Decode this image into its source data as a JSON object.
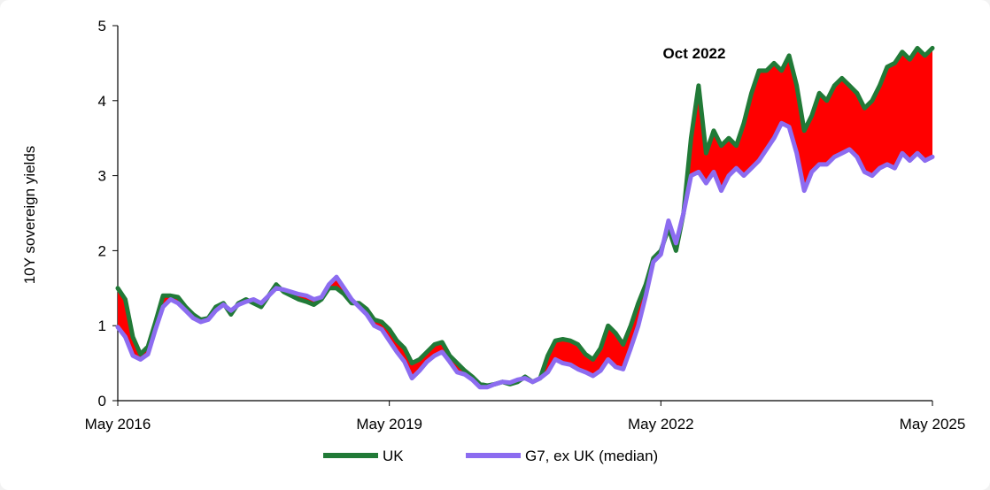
{
  "chart_data": {
    "type": "line",
    "title": "",
    "xlabel": "",
    "ylabel": "10Y sovereign yields",
    "ylim": [
      0,
      5
    ],
    "yticks": [
      "0",
      "1",
      "2",
      "3",
      "4",
      "5"
    ],
    "xticks": [
      "May 2016",
      "May 2019",
      "May 2022",
      "May 2025"
    ],
    "xlim": [
      "2016-05",
      "2025-05"
    ],
    "grid": false,
    "legend_position": "bottom",
    "annotation": "Oct 2022",
    "fill_between": "UK above G7, ex UK (median) shaded",
    "colors": {
      "UK": "#217a37",
      "G7": "#8c6cf0",
      "gap": "#ff0000"
    },
    "x": [
      "2016-05",
      "2016-06",
      "2016-07",
      "2016-08",
      "2016-09",
      "2016-10",
      "2016-11",
      "2016-12",
      "2017-01",
      "2017-02",
      "2017-03",
      "2017-04",
      "2017-05",
      "2017-06",
      "2017-07",
      "2017-08",
      "2017-09",
      "2017-10",
      "2017-11",
      "2017-12",
      "2018-01",
      "2018-02",
      "2018-03",
      "2018-04",
      "2018-05",
      "2018-06",
      "2018-07",
      "2018-08",
      "2018-09",
      "2018-10",
      "2018-11",
      "2018-12",
      "2019-01",
      "2019-02",
      "2019-03",
      "2019-04",
      "2019-05",
      "2019-06",
      "2019-07",
      "2019-08",
      "2019-09",
      "2019-10",
      "2019-11",
      "2019-12",
      "2020-01",
      "2020-02",
      "2020-03",
      "2020-04",
      "2020-05",
      "2020-06",
      "2020-07",
      "2020-08",
      "2020-09",
      "2020-10",
      "2020-11",
      "2020-12",
      "2021-01",
      "2021-02",
      "2021-03",
      "2021-04",
      "2021-05",
      "2021-06",
      "2021-07",
      "2021-08",
      "2021-09",
      "2021-10",
      "2021-11",
      "2021-12",
      "2022-01",
      "2022-02",
      "2022-03",
      "2022-04",
      "2022-05",
      "2022-06",
      "2022-07",
      "2022-08",
      "2022-09",
      "2022-10",
      "2022-11",
      "2022-12",
      "2023-01",
      "2023-02",
      "2023-03",
      "2023-04",
      "2023-05",
      "2023-06",
      "2023-07",
      "2023-08",
      "2023-09",
      "2023-10",
      "2023-11",
      "2023-12",
      "2024-01",
      "2024-02",
      "2024-03",
      "2024-04",
      "2024-05",
      "2024-06",
      "2024-07",
      "2024-08",
      "2024-09",
      "2024-10",
      "2024-11",
      "2024-12",
      "2025-01",
      "2025-02",
      "2025-03",
      "2025-04",
      "2025-05"
    ],
    "series": [
      {
        "name": "UK",
        "values": [
          1.5,
          1.35,
          0.85,
          0.62,
          0.72,
          1.05,
          1.4,
          1.4,
          1.38,
          1.25,
          1.15,
          1.08,
          1.1,
          1.25,
          1.3,
          1.15,
          1.3,
          1.35,
          1.3,
          1.25,
          1.4,
          1.55,
          1.45,
          1.4,
          1.35,
          1.32,
          1.28,
          1.35,
          1.5,
          1.5,
          1.42,
          1.3,
          1.3,
          1.22,
          1.08,
          1.05,
          0.95,
          0.8,
          0.7,
          0.5,
          0.55,
          0.65,
          0.75,
          0.78,
          0.6,
          0.5,
          0.4,
          0.32,
          0.22,
          0.2,
          0.22,
          0.25,
          0.22,
          0.25,
          0.32,
          0.25,
          0.3,
          0.6,
          0.8,
          0.82,
          0.8,
          0.75,
          0.62,
          0.55,
          0.7,
          1.0,
          0.9,
          0.75,
          1.0,
          1.3,
          1.55,
          1.9,
          2.0,
          2.3,
          2.0,
          2.5,
          3.5,
          4.2,
          3.3,
          3.6,
          3.4,
          3.5,
          3.4,
          3.7,
          4.1,
          4.4,
          4.4,
          4.5,
          4.4,
          4.6,
          4.2,
          3.6,
          3.8,
          4.1,
          4.0,
          4.2,
          4.3,
          4.2,
          4.1,
          3.9,
          4.0,
          4.2,
          4.45,
          4.5,
          4.65,
          4.55,
          4.7,
          4.6,
          4.7
        ]
      },
      {
        "name": "G7, ex UK (median)",
        "values": [
          0.98,
          0.85,
          0.6,
          0.55,
          0.62,
          0.95,
          1.25,
          1.35,
          1.3,
          1.2,
          1.1,
          1.05,
          1.08,
          1.2,
          1.28,
          1.2,
          1.28,
          1.32,
          1.35,
          1.3,
          1.4,
          1.5,
          1.48,
          1.45,
          1.42,
          1.4,
          1.35,
          1.38,
          1.55,
          1.65,
          1.5,
          1.35,
          1.25,
          1.15,
          1.0,
          0.95,
          0.8,
          0.65,
          0.52,
          0.3,
          0.4,
          0.52,
          0.6,
          0.65,
          0.52,
          0.38,
          0.35,
          0.28,
          0.18,
          0.18,
          0.22,
          0.25,
          0.24,
          0.28,
          0.3,
          0.25,
          0.3,
          0.38,
          0.55,
          0.5,
          0.48,
          0.42,
          0.38,
          0.33,
          0.4,
          0.55,
          0.45,
          0.42,
          0.7,
          1.0,
          1.4,
          1.85,
          1.95,
          2.4,
          2.1,
          2.5,
          3.0,
          3.05,
          2.9,
          3.05,
          2.8,
          3.0,
          3.1,
          3.0,
          3.1,
          3.2,
          3.35,
          3.5,
          3.7,
          3.65,
          3.3,
          2.8,
          3.05,
          3.15,
          3.15,
          3.25,
          3.3,
          3.35,
          3.25,
          3.05,
          3.0,
          3.1,
          3.15,
          3.1,
          3.3,
          3.2,
          3.3,
          3.2,
          3.25
        ]
      }
    ]
  }
}
